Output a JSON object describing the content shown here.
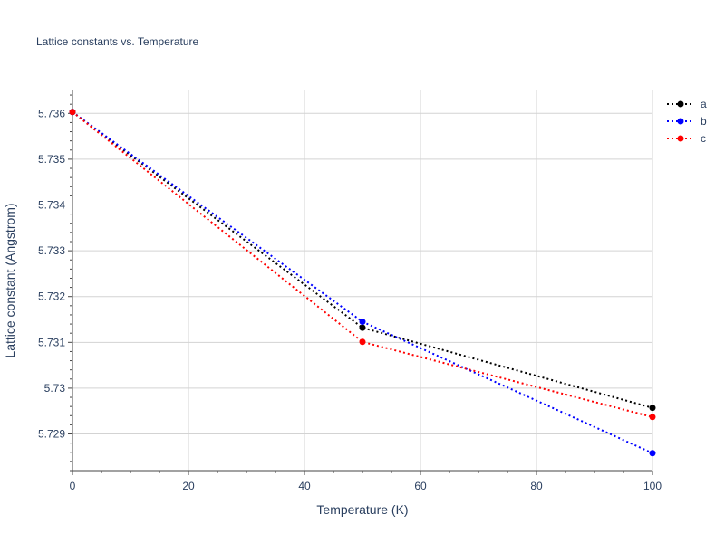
{
  "chart_data": {
    "type": "line",
    "title": "Lattice constants vs. Temperature",
    "xlabel": "Temperature (K)",
    "ylabel": "Lattice constant (Angstrom)",
    "xlim": [
      0,
      100
    ],
    "ylim": [
      5.7282,
      5.7365
    ],
    "x_ticks": [
      0,
      20,
      40,
      60,
      80,
      100
    ],
    "x_tick_labels": [
      "0",
      "20",
      "40",
      "60",
      "80",
      "100"
    ],
    "y_ticks": [
      5.729,
      5.73,
      5.731,
      5.732,
      5.733,
      5.734,
      5.735,
      5.736
    ],
    "y_tick_labels": [
      "5.729",
      "5.73",
      "5.731",
      "5.732",
      "5.733",
      "5.734",
      "5.735",
      "5.736"
    ],
    "grid": true,
    "legend_position": "top-right",
    "line_style": "dotted",
    "series": [
      {
        "name": "a",
        "color": "#000000",
        "x": [
          0,
          50,
          100
        ],
        "y": [
          5.73603,
          5.73132,
          5.72957
        ]
      },
      {
        "name": "b",
        "color": "#0000ff",
        "x": [
          0,
          50,
          100
        ],
        "y": [
          5.73603,
          5.73145,
          5.72858
        ]
      },
      {
        "name": "c",
        "color": "#ff0000",
        "x": [
          0,
          50,
          100
        ],
        "y": [
          5.73603,
          5.73101,
          5.72937
        ]
      }
    ]
  }
}
